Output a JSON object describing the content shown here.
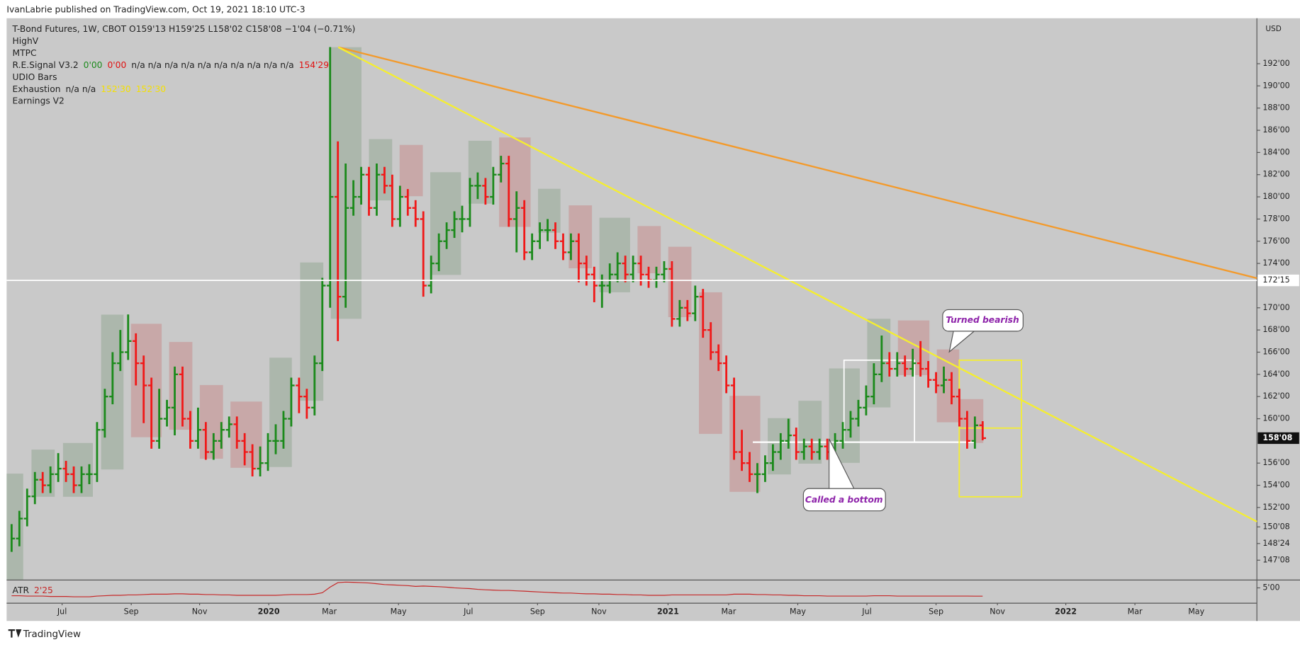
{
  "header": {
    "publisher": "IvanLabrie published on TradingView.com, Oct 19, 2021 18:10 UTC-3"
  },
  "legend": {
    "rows": [
      {
        "parts": [
          {
            "text": "T-Bond Futures, 1W, CBOT  O159'13  H159'25  L158'02  C158'08  −1'04 (−0.71%)",
            "color": "#222222"
          }
        ]
      },
      {
        "parts": [
          {
            "text": "HighV",
            "color": "#222222"
          }
        ]
      },
      {
        "parts": [
          {
            "text": "MTPC",
            "color": "#222222"
          }
        ]
      },
      {
        "parts": [
          {
            "text": "R.E.Signal V3.2",
            "color": "#222222"
          },
          {
            "text": "0'00",
            "color": "#1b8a1b"
          },
          {
            "text": "0'00",
            "color": "#e01010"
          },
          {
            "text": "n/a  n/a  n/a  n/a  n/a  n/a  n/a  n/a  n/a  n/a",
            "color": "#222222"
          },
          {
            "text": "154'29",
            "color": "#e01010"
          }
        ]
      },
      {
        "parts": [
          {
            "text": "UDIO Bars",
            "color": "#222222"
          }
        ]
      },
      {
        "parts": [
          {
            "text": "Exhaustion",
            "color": "#222222"
          },
          {
            "text": "n/a  n/a",
            "color": "#222222"
          },
          {
            "text": "152'30",
            "color": "#f5e000"
          },
          {
            "text": "152'30",
            "color": "#f5e000"
          }
        ]
      },
      {
        "parts": [
          {
            "text": "Earnings V2",
            "color": "#222222"
          }
        ]
      }
    ]
  },
  "chart_data": {
    "type": "ohlc",
    "currency": "USD",
    "up_color": "#1b8a1b",
    "down_color": "#f01818",
    "xlim": [
      -0.64,
      160.3
    ],
    "xticks": [
      {
        "value": 6.5,
        "label": "Jul"
      },
      {
        "value": 15.4,
        "label": "Sep"
      },
      {
        "value": 24.2,
        "label": "Nov"
      },
      {
        "value": 33.1,
        "label": "2020"
      },
      {
        "value": 40.9,
        "label": "Mar"
      },
      {
        "value": 49.8,
        "label": "May"
      },
      {
        "value": 58.8,
        "label": "Jul"
      },
      {
        "value": 67.7,
        "label": "Sep"
      },
      {
        "value": 75.6,
        "label": "Nov"
      },
      {
        "value": 84.5,
        "label": "2021"
      },
      {
        "value": 92.3,
        "label": "Mar"
      },
      {
        "value": 101.2,
        "label": "May"
      },
      {
        "value": 110.1,
        "label": "Jul"
      },
      {
        "value": 119.0,
        "label": "Sep"
      },
      {
        "value": 126.9,
        "label": "Nov"
      },
      {
        "value": 135.7,
        "label": "2022"
      },
      {
        "value": 144.6,
        "label": "Mar"
      },
      {
        "value": 152.5,
        "label": "May"
      }
    ],
    "ylim": [
      145.5,
      196.1
    ],
    "yticks": [
      {
        "value": 192,
        "label": "192'00"
      },
      {
        "value": 190,
        "label": "190'00"
      },
      {
        "value": 188,
        "label": "188'00"
      },
      {
        "value": 186,
        "label": "186'00"
      },
      {
        "value": 184,
        "label": "184'00"
      },
      {
        "value": 182,
        "label": "182'00"
      },
      {
        "value": 180,
        "label": "180'00"
      },
      {
        "value": 178,
        "label": "178'00"
      },
      {
        "value": 176,
        "label": "176'00"
      },
      {
        "value": 174,
        "label": "174'00"
      },
      {
        "value": 170,
        "label": "170'00"
      },
      {
        "value": 168,
        "label": "168'00"
      },
      {
        "value": 166,
        "label": "166'00"
      },
      {
        "value": 164,
        "label": "164'00"
      },
      {
        "value": 162,
        "label": "162'00"
      },
      {
        "value": 160,
        "label": "160'00"
      },
      {
        "value": 156,
        "label": "156'00"
      },
      {
        "value": 154,
        "label": "154'00"
      },
      {
        "value": 152,
        "label": "152'00"
      },
      {
        "value": 150.25,
        "label": "150'08"
      },
      {
        "value": 148.75,
        "label": "148'24"
      },
      {
        "value": 147.25,
        "label": "147'08"
      }
    ],
    "level": {
      "value": 172.47,
      "label": "172'15",
      "color": "#ffffff"
    },
    "last_price": {
      "value": 158.25,
      "label": "158'08"
    },
    "high": [
      150.5,
      151.7,
      153.7,
      155.2,
      155.2,
      155.7,
      156.9,
      156.2,
      155.7,
      155.7,
      155.9,
      159.7,
      162.7,
      166,
      168,
      169.4,
      167.7,
      165.7,
      163.7,
      162.7,
      161.7,
      164.7,
      164.7,
      160.7,
      161,
      159.7,
      158.7,
      159.7,
      160.2,
      160.2,
      158.7,
      157.7,
      157.5,
      158.7,
      159.5,
      160.7,
      163.7,
      163.7,
      162.7,
      165.7,
      172.7,
      193.5,
      185,
      183,
      181.5,
      182.7,
      182.7,
      183,
      182.7,
      182,
      181,
      180.7,
      179.7,
      178.7,
      174.7,
      176.7,
      177.7,
      178.7,
      179.2,
      181.7,
      182.2,
      181.7,
      182.7,
      183.7,
      183.7,
      180.5,
      179.7,
      176.7,
      177.7,
      178,
      177.7,
      176.7,
      176.7,
      176.7,
      174.7,
      173.7,
      173,
      174,
      175,
      174.7,
      174.7,
      174.7,
      173.7,
      173.7,
      174.2,
      174.2,
      170.7,
      170.7,
      172,
      171.7,
      168.7,
      166.7,
      165.7,
      163.7,
      159,
      157,
      156,
      156.7,
      157.7,
      158.7,
      160,
      159.2,
      158.2,
      158.2,
      158.2,
      158.2,
      158.7,
      159.7,
      160.7,
      161.7,
      163,
      165,
      167.5,
      166,
      166,
      165.7,
      166.3,
      167,
      165.2,
      164.2,
      164.7,
      164.2,
      162.7,
      160.7,
      160.2,
      159.78
    ],
    "low": [
      148,
      148.5,
      150.3,
      152.3,
      153.3,
      153.3,
      154.3,
      154.3,
      153.3,
      153.3,
      154.1,
      154.3,
      158.3,
      161.3,
      164.3,
      165.3,
      163,
      159.6,
      157.3,
      157.3,
      159.3,
      158.5,
      159.3,
      157.3,
      157.3,
      156.3,
      156.3,
      157.3,
      158.3,
      157.3,
      155.8,
      154.8,
      154.8,
      155.3,
      156.8,
      157.3,
      159.3,
      160.5,
      160,
      160.3,
      164.3,
      170,
      167,
      170,
      178.3,
      179.3,
      178.3,
      178.3,
      180.3,
      177.3,
      177.3,
      178.3,
      177.3,
      171,
      171.3,
      173.3,
      175.3,
      176.3,
      176.8,
      177.3,
      179.8,
      179.3,
      179.3,
      181.3,
      177.3,
      175,
      174.3,
      174.3,
      175.3,
      176,
      175.3,
      174.3,
      174.3,
      172.3,
      172,
      170.5,
      170,
      171.3,
      172.3,
      172.3,
      172.3,
      172,
      171.8,
      171.8,
      172.3,
      168.3,
      168.3,
      168.8,
      168.8,
      167.3,
      165.3,
      164.3,
      162.3,
      156.3,
      155.3,
      154.3,
      153.3,
      154.3,
      155.3,
      156.3,
      157.3,
      156.3,
      156.3,
      156.3,
      156.3,
      156.3,
      156.3,
      157.3,
      158.3,
      159.3,
      160.3,
      161.3,
      163.3,
      163.8,
      163.8,
      163.8,
      163.8,
      163.8,
      162.8,
      162.3,
      162.3,
      161.3,
      159.3,
      157.3,
      157.3,
      158.06
    ],
    "close": [
      149.2,
      151,
      153,
      154.5,
      154,
      155,
      155.5,
      155,
      154,
      155,
      155,
      159,
      162,
      165,
      166,
      167,
      165,
      163,
      158,
      160,
      161,
      164,
      160,
      158,
      159,
      157,
      158,
      159,
      159.5,
      158,
      157,
      155.5,
      156,
      158,
      158,
      160,
      163,
      162,
      161,
      165,
      172,
      180,
      171,
      179,
      180,
      182,
      179,
      182,
      181,
      178,
      180,
      179,
      178,
      172,
      174,
      176,
      177,
      178,
      178,
      181,
      181,
      180,
      182,
      183,
      178,
      179,
      175,
      176,
      177,
      177,
      176,
      175,
      176,
      174,
      173,
      172,
      172,
      173,
      174,
      173,
      174,
      173,
      172.5,
      173,
      173.5,
      169,
      170,
      169.5,
      171,
      168,
      166,
      165,
      163,
      157,
      156,
      155,
      155,
      156,
      157,
      158,
      158.5,
      157,
      157.5,
      157,
      157.5,
      157,
      158,
      159,
      160,
      161,
      162,
      164,
      165,
      164.5,
      165,
      164.5,
      165,
      164.5,
      163.5,
      163,
      163.5,
      162,
      160,
      158,
      159.41,
      158.25
    ],
    "annotations": [
      {
        "text": "Turned bearish"
      },
      {
        "text": "Called a bottom"
      }
    ],
    "atr": {
      "name": "ATR",
      "value_label": "2'25",
      "color": "#c62828",
      "ylim": [
        1,
        7
      ],
      "yticks": [
        {
          "value": 5,
          "label": "5'00"
        }
      ],
      "values": [
        2.9,
        2.9,
        2.8,
        2.8,
        2.8,
        2.7,
        2.7,
        2.7,
        2.6,
        2.6,
        2.6,
        2.8,
        2.9,
        3.0,
        3.0,
        3.1,
        3.1,
        3.2,
        3.3,
        3.3,
        3.3,
        3.4,
        3.4,
        3.3,
        3.3,
        3.2,
        3.2,
        3.1,
        3.1,
        3.0,
        3.0,
        3.0,
        3.0,
        3.0,
        3.0,
        3.1,
        3.2,
        3.2,
        3.2,
        3.3,
        3.7,
        5.2,
        6.4,
        6.55,
        6.5,
        6.4,
        6.3,
        6.1,
        5.9,
        5.8,
        5.7,
        5.6,
        5.4,
        5.5,
        5.4,
        5.3,
        5.2,
        5.0,
        4.9,
        4.8,
        4.6,
        4.5,
        4.4,
        4.3,
        4.3,
        4.2,
        4.1,
        4.0,
        3.9,
        3.8,
        3.7,
        3.6,
        3.6,
        3.5,
        3.4,
        3.4,
        3.3,
        3.3,
        3.2,
        3.2,
        3.1,
        3.1,
        3.0,
        3.0,
        3.0,
        3.1,
        3.1,
        3.1,
        3.1,
        3.1,
        3.1,
        3.1,
        3.1,
        3.3,
        3.3,
        3.3,
        3.2,
        3.2,
        3.1,
        3.1,
        3.0,
        3.0,
        2.9,
        2.9,
        2.9,
        2.8,
        2.8,
        2.8,
        2.8,
        2.8,
        2.8,
        2.9,
        2.9,
        2.9,
        2.8,
        2.8,
        2.8,
        2.8,
        2.8,
        2.8,
        2.8,
        2.8,
        2.8,
        2.8,
        2.78,
        2.78
      ]
    }
  },
  "footer": {
    "brand": "TradingView"
  }
}
